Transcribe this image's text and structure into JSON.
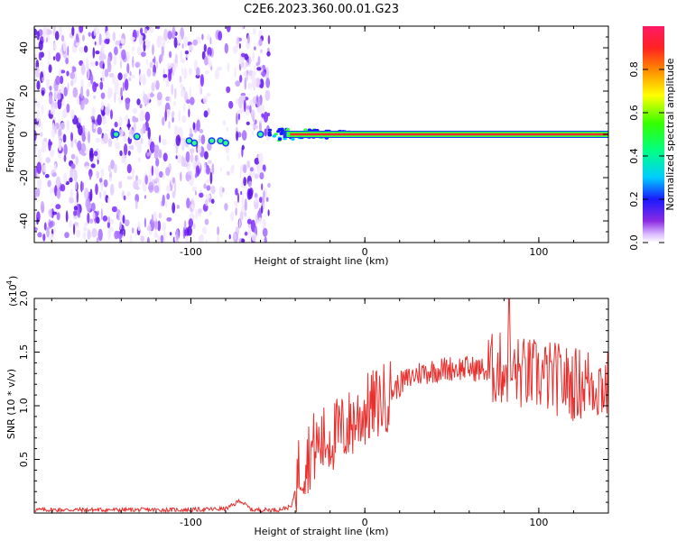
{
  "title": "C2E6.2023.360.00.01.G23",
  "chart_data": [
    {
      "type": "heatmap",
      "xlabel": "Height of straight line (km)",
      "ylabel": "Frequency (Hz)",
      "xlim": [
        -190,
        140
      ],
      "ylim": [
        -50,
        50
      ],
      "xticks": [
        -100,
        0,
        100
      ],
      "yticks": [
        -40,
        -20,
        0,
        20,
        40
      ],
      "colorbar": {
        "label": "Normalized spectral amplitude",
        "range": [
          0,
          1
        ],
        "ticks": [
          "0.0",
          "0.2",
          "0.4",
          "0.6",
          "0.8"
        ]
      },
      "signal_line": {
        "frequency_hz": 0,
        "start_km": -55,
        "end_km": 140,
        "noise_region_km": [
          -190,
          -55
        ]
      }
    },
    {
      "type": "line",
      "xlabel": "Height of straight line (km)",
      "ylabel": "SNR (10 * v/v)",
      "yscale_label": "(x10",
      "yscale_exp": "4",
      "yscale_close": ")",
      "xlim": [
        -190,
        140
      ],
      "ylim": [
        0,
        2.0
      ],
      "xticks": [
        -100,
        0,
        100
      ],
      "yticks": [
        "0.5",
        "1.0",
        "1.5",
        "2.0"
      ],
      "series": [
        {
          "color": "#e8302e",
          "x": [
            -190,
            -140,
            -100,
            -80,
            -75,
            -72,
            -65,
            -50,
            -42,
            -38,
            -30,
            -20,
            -10,
            0,
            10,
            20,
            30,
            40,
            50,
            60,
            70,
            80,
            90,
            100,
            110,
            120,
            130,
            140
          ],
          "y": [
            0.03,
            0.03,
            0.03,
            0.04,
            0.08,
            0.12,
            0.03,
            0.03,
            0.06,
            0.4,
            0.6,
            0.7,
            0.8,
            0.95,
            1.05,
            1.2,
            1.3,
            1.33,
            1.35,
            1.35,
            1.33,
            1.35,
            1.3,
            1.28,
            1.25,
            1.2,
            1.22,
            1.18
          ]
        }
      ]
    }
  ]
}
